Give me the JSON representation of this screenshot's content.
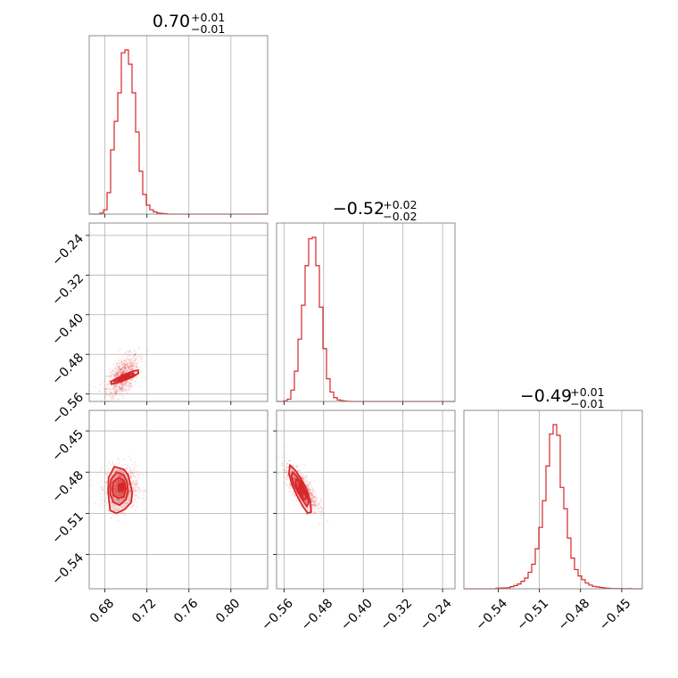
{
  "chart_data": {
    "type": "corner",
    "color": "#d62728",
    "parameters": [
      {
        "title_value": "0.70",
        "title_plus": "+0.01",
        "title_minus": "−0.01"
      },
      {
        "title_value": "−0.52",
        "title_plus": "+0.02",
        "title_minus": "−0.02"
      },
      {
        "title_value": "−0.49",
        "title_plus": "+0.01",
        "title_minus": "−0.01"
      }
    ],
    "axis_ranges": [
      [
        0.665,
        0.835
      ],
      [
        -0.575,
        -0.215
      ],
      [
        -0.565,
        -0.435
      ]
    ],
    "ticks": [
      {
        "values": [
          0.68,
          0.72,
          0.76,
          0.8
        ],
        "labels": [
          "0.68",
          "0.72",
          "0.76",
          "0.80"
        ]
      },
      {
        "values": [
          -0.56,
          -0.48,
          -0.4,
          -0.32,
          -0.24
        ],
        "labels": [
          "−0.56",
          "−0.48",
          "−0.40",
          "−0.32",
          "−0.24"
        ]
      },
      {
        "values": [
          -0.54,
          -0.51,
          -0.48,
          -0.45
        ],
        "labels": [
          "−0.54",
          "−0.51",
          "−0.48",
          "−0.45"
        ]
      }
    ],
    "grid": true,
    "histograms": [
      {
        "x_start": 0.665,
        "bin_width": 0.0034,
        "counts": [
          0,
          0,
          0,
          3,
          12,
          60,
          180,
          260,
          340,
          452,
          460,
          420,
          340,
          230,
          120,
          55,
          25,
          12,
          6,
          3,
          2,
          1,
          0,
          0,
          0,
          0,
          0,
          0,
          0,
          0,
          0,
          0,
          0,
          0,
          0,
          0,
          0,
          0,
          0,
          0,
          0,
          0,
          0,
          0,
          0,
          0,
          0,
          0,
          0,
          0
        ]
      },
      {
        "x_start": -0.575,
        "bin_width": 0.0072,
        "counts": [
          0,
          0,
          3,
          12,
          60,
          160,
          330,
          510,
          720,
          862,
          870,
          720,
          500,
          280,
          120,
          50,
          20,
          8,
          4,
          2,
          1,
          0,
          0,
          0,
          0,
          0,
          0,
          0,
          0,
          0,
          0,
          0,
          0,
          0,
          0,
          0,
          0,
          0,
          0,
          0,
          0,
          0,
          0,
          0,
          0,
          0,
          0,
          0,
          0,
          0
        ]
      },
      {
        "x_start": -0.565,
        "bin_width": 0.0026,
        "counts": [
          0,
          0,
          0,
          0,
          0,
          0,
          0,
          0,
          0,
          2,
          3,
          3,
          4,
          8,
          12,
          18,
          28,
          40,
          62,
          92,
          150,
          230,
          330,
          460,
          580,
          615,
          575,
          380,
          300,
          190,
          115,
          72,
          48,
          34,
          22,
          14,
          9,
          7,
          5,
          3,
          2,
          1,
          1,
          1,
          1,
          0,
          1,
          0,
          0,
          0
        ]
      }
    ],
    "scatter_panels": [
      {
        "x_param": 0,
        "y_param": 1,
        "n_points": 900,
        "center": [
          0.697,
          -0.525
        ],
        "contours": [
          [
            [
              0.6855,
              -0.535
            ],
            [
              0.6915,
              -0.528
            ],
            [
              0.699,
              -0.521
            ],
            [
              0.706,
              -0.514
            ],
            [
              0.7115,
              -0.512
            ],
            [
              0.712,
              -0.518
            ],
            [
              0.706,
              -0.526
            ],
            [
              0.699,
              -0.532
            ],
            [
              0.691,
              -0.538
            ],
            [
              0.686,
              -0.54
            ]
          ],
          [
            [
              0.6885,
              -0.532
            ],
            [
              0.695,
              -0.526
            ],
            [
              0.702,
              -0.521
            ],
            [
              0.707,
              -0.518
            ],
            [
              0.708,
              -0.521
            ],
            [
              0.702,
              -0.527
            ],
            [
              0.695,
              -0.532
            ],
            [
              0.689,
              -0.535
            ]
          ],
          [
            [
              0.692,
              -0.529
            ],
            [
              0.698,
              -0.525
            ],
            [
              0.703,
              -0.522
            ],
            [
              0.704,
              -0.524
            ],
            [
              0.698,
              -0.528
            ],
            [
              0.693,
              -0.531
            ]
          ],
          [
            [
              0.695,
              -0.527
            ],
            [
              0.699,
              -0.525
            ],
            [
              0.701,
              -0.524
            ],
            [
              0.7,
              -0.526
            ],
            [
              0.696,
              -0.528
            ]
          ]
        ]
      },
      {
        "x_param": 0,
        "y_param": 2,
        "n_points": 900,
        "center": [
          0.696,
          -0.491
        ],
        "contours": [
          [
            [
              0.6835,
              -0.484
            ],
            [
              0.689,
              -0.476
            ],
            [
              0.698,
              -0.478
            ],
            [
              0.702,
              -0.482
            ],
            [
              0.704,
              -0.488
            ],
            [
              0.706,
              -0.495
            ],
            [
              0.705,
              -0.502
            ],
            [
              0.699,
              -0.507
            ],
            [
              0.691,
              -0.51
            ],
            [
              0.685,
              -0.508
            ],
            [
              0.684,
              -0.502
            ],
            [
              0.683,
              -0.494
            ]
          ],
          [
            [
              0.686,
              -0.485
            ],
            [
              0.691,
              -0.48
            ],
            [
              0.698,
              -0.482
            ],
            [
              0.701,
              -0.487
            ],
            [
              0.702,
              -0.494
            ],
            [
              0.7,
              -0.5
            ],
            [
              0.694,
              -0.504
            ],
            [
              0.688,
              -0.502
            ],
            [
              0.685,
              -0.496
            ],
            [
              0.685,
              -0.49
            ]
          ],
          [
            [
              0.688,
              -0.487
            ],
            [
              0.693,
              -0.484
            ],
            [
              0.698,
              -0.486
            ],
            [
              0.7,
              -0.492
            ],
            [
              0.698,
              -0.498
            ],
            [
              0.693,
              -0.499
            ],
            [
              0.688,
              -0.497
            ],
            [
              0.687,
              -0.492
            ]
          ],
          [
            [
              0.693,
              -0.489
            ],
            [
              0.697,
              -0.488
            ],
            [
              0.699,
              -0.491
            ],
            [
              0.697,
              -0.494
            ],
            [
              0.693,
              -0.494
            ]
          ]
        ]
      },
      {
        "x_param": 1,
        "y_param": 2,
        "n_points": 900,
        "center": [
          -0.525,
          -0.491
        ],
        "contours": [
          [
            [
              -0.548,
              -0.475
            ],
            [
              -0.539,
              -0.478
            ],
            [
              -0.527,
              -0.484
            ],
            [
              -0.516,
              -0.491
            ],
            [
              -0.507,
              -0.501
            ],
            [
              -0.505,
              -0.509
            ],
            [
              -0.512,
              -0.51
            ],
            [
              -0.522,
              -0.505
            ],
            [
              -0.534,
              -0.497
            ],
            [
              -0.544,
              -0.489
            ],
            [
              -0.55,
              -0.481
            ]
          ],
          [
            [
              -0.543,
              -0.48
            ],
            [
              -0.534,
              -0.483
            ],
            [
              -0.524,
              -0.488
            ],
            [
              -0.515,
              -0.495
            ],
            [
              -0.51,
              -0.502
            ],
            [
              -0.514,
              -0.505
            ],
            [
              -0.523,
              -0.5
            ],
            [
              -0.533,
              -0.494
            ],
            [
              -0.541,
              -0.488
            ],
            [
              -0.545,
              -0.483
            ]
          ],
          [
            [
              -0.535,
              -0.485
            ],
            [
              -0.527,
              -0.488
            ],
            [
              -0.519,
              -0.493
            ],
            [
              -0.515,
              -0.499
            ],
            [
              -0.519,
              -0.5
            ],
            [
              -0.527,
              -0.496
            ],
            [
              -0.534,
              -0.491
            ],
            [
              -0.537,
              -0.487
            ]
          ],
          [
            [
              -0.529,
              -0.489
            ],
            [
              -0.524,
              -0.491
            ],
            [
              -0.52,
              -0.494
            ],
            [
              -0.522,
              -0.496
            ],
            [
              -0.527,
              -0.494
            ],
            [
              -0.53,
              -0.491
            ]
          ]
        ]
      }
    ]
  }
}
